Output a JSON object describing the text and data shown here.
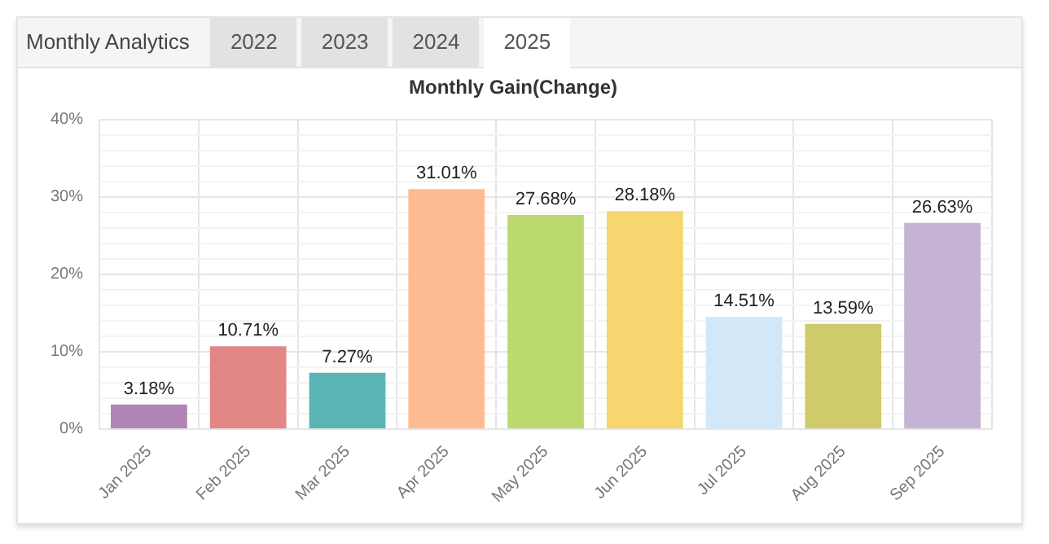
{
  "chart_data": {
    "type": "bar",
    "title": "Monthly Gain(Change)",
    "annotations": [
      "Monthly Analytics",
      "2022",
      "2023",
      "2024",
      "2025"
    ],
    "categories": [
      "Jan 2025",
      "Feb 2025",
      "Mar 2025",
      "Apr 2025",
      "May 2025",
      "Jun 2025",
      "Jul 2025",
      "Aug 2025",
      "Sep 2025"
    ],
    "values": [
      3.18,
      10.71,
      7.27,
      31.01,
      27.68,
      28.18,
      14.51,
      13.59,
      26.63
    ],
    "value_labels": [
      "3.18%",
      "10.71%",
      "7.27%",
      "31.01%",
      "27.68%",
      "28.18%",
      "14.51%",
      "13.59%",
      "26.63%"
    ],
    "colors": [
      "#b084b5",
      "#e28686",
      "#5bb5b5",
      "#ffbb91",
      "#bcd96d",
      "#f7d56f",
      "#d2e7f7",
      "#cfcb6a",
      "#c5b3d3"
    ],
    "ylim": [
      0,
      40
    ],
    "yticks": [
      {
        "value": 0,
        "label": "0%"
      },
      {
        "value": 2,
        "label": null
      },
      {
        "value": 4,
        "label": null
      },
      {
        "value": 6,
        "label": null
      },
      {
        "value": 8,
        "label": null
      },
      {
        "value": 10,
        "label": "10%"
      },
      {
        "value": 12,
        "label": null
      },
      {
        "value": 14,
        "label": null
      },
      {
        "value": 16,
        "label": null
      },
      {
        "value": 18,
        "label": null
      },
      {
        "value": 20,
        "label": "20%"
      },
      {
        "value": 22,
        "label": null
      },
      {
        "value": 24,
        "label": null
      },
      {
        "value": 26,
        "label": null
      },
      {
        "value": 28,
        "label": null
      },
      {
        "value": 30,
        "label": "30%"
      },
      {
        "value": 32,
        "label": null
      },
      {
        "value": 34,
        "label": null
      },
      {
        "value": 36,
        "label": null
      },
      {
        "value": 38,
        "label": null
      },
      {
        "value": 40,
        "label": "40%"
      }
    ],
    "grid": true,
    "legend": false
  }
}
